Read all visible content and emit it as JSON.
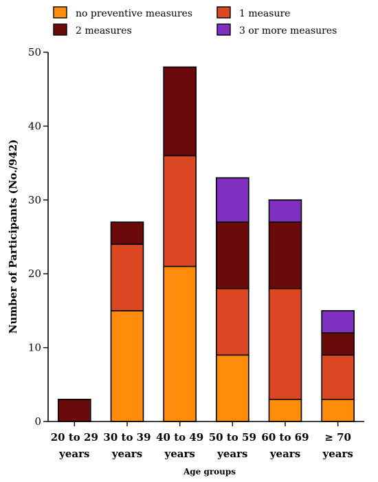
{
  "chart_data": {
    "type": "bar",
    "stacked": true,
    "title": "",
    "xlabel": "Age groups",
    "ylabel": "Number of Participants (No./942)",
    "ylim": [
      0,
      50
    ],
    "yticks": [
      0,
      10,
      20,
      30,
      40,
      50
    ],
    "grid": false,
    "legend_position": "top",
    "categories": [
      [
        "20 to 29",
        "years"
      ],
      [
        "30 to 39",
        "years"
      ],
      [
        "40 to 49",
        "years"
      ],
      [
        "50 to 59",
        "years"
      ],
      [
        "60 to 69",
        "years"
      ],
      [
        "≥ 70",
        "years"
      ]
    ],
    "series": [
      {
        "name": "no preventive measures",
        "color": "#FF8C0A",
        "values": [
          0,
          15,
          21,
          9,
          3,
          3
        ]
      },
      {
        "name": "1 measure",
        "color": "#D94822",
        "values": [
          0,
          9,
          15,
          9,
          15,
          6
        ]
      },
      {
        "name": "2 measures",
        "color": "#6B0A0A",
        "values": [
          3,
          3,
          12,
          9,
          9,
          3
        ]
      },
      {
        "name": "3 or more measures",
        "color": "#7F30C0",
        "values": [
          0,
          0,
          0,
          6,
          3,
          3
        ]
      }
    ]
  }
}
